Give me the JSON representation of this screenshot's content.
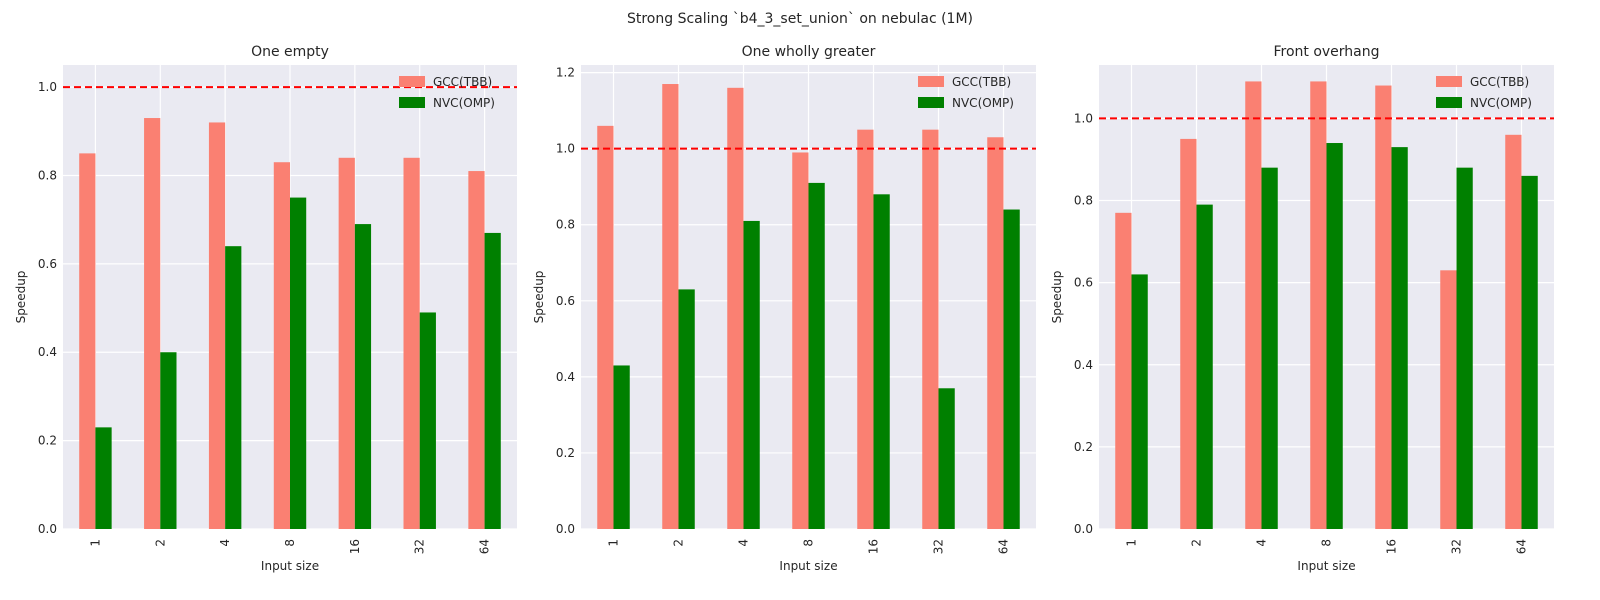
{
  "figure": {
    "suptitle": "Strong Scaling `b4_3_set_union` on nebulac (1M)"
  },
  "style": {
    "plot_bg": "#eaeaf2",
    "grid_color": "#ffffff",
    "reference_line_color": "#ff0000"
  },
  "chart_data": [
    {
      "type": "bar",
      "title": "One empty",
      "xlabel": "Input size",
      "ylabel": "Speedup",
      "categories": [
        "1",
        "2",
        "4",
        "8",
        "16",
        "32",
        "64"
      ],
      "ylim": [
        0,
        1.05
      ],
      "yticks": [
        "0.0",
        "0.2",
        "0.4",
        "0.6",
        "0.8",
        "1.0"
      ],
      "reference_line": 1.0,
      "legend_position": "top-right",
      "series": [
        {
          "name": "GCC(TBB)",
          "color": "#fa8072",
          "values": [
            0.85,
            0.93,
            0.92,
            0.83,
            0.84,
            0.84,
            0.81
          ]
        },
        {
          "name": "NVC(OMP)",
          "color": "#008000",
          "values": [
            0.23,
            0.4,
            0.64,
            0.75,
            0.69,
            0.49,
            0.67
          ]
        }
      ]
    },
    {
      "type": "bar",
      "title": "One wholly greater",
      "xlabel": "Input size",
      "ylabel": "Speedup",
      "categories": [
        "1",
        "2",
        "4",
        "8",
        "16",
        "32",
        "64"
      ],
      "ylim": [
        0,
        1.22
      ],
      "yticks": [
        "0.0",
        "0.2",
        "0.4",
        "0.6",
        "0.8",
        "1.0",
        "1.2"
      ],
      "reference_line": 1.0,
      "legend_position": "top-right",
      "series": [
        {
          "name": "GCC(TBB)",
          "color": "#fa8072",
          "values": [
            1.06,
            1.17,
            1.16,
            0.99,
            1.05,
            1.05,
            1.03
          ]
        },
        {
          "name": "NVC(OMP)",
          "color": "#008000",
          "values": [
            0.43,
            0.63,
            0.81,
            0.91,
            0.88,
            0.37,
            0.84
          ]
        }
      ]
    },
    {
      "type": "bar",
      "title": "Front overhang",
      "xlabel": "Input size",
      "ylabel": "Speedup",
      "categories": [
        "1",
        "2",
        "4",
        "8",
        "16",
        "32",
        "64"
      ],
      "ylim": [
        0,
        1.13
      ],
      "yticks": [
        "0.0",
        "0.2",
        "0.4",
        "0.6",
        "0.8",
        "1.0"
      ],
      "reference_line": 1.0,
      "legend_position": "top-right",
      "series": [
        {
          "name": "GCC(TBB)",
          "color": "#fa8072",
          "values": [
            0.77,
            0.95,
            1.09,
            1.09,
            1.08,
            0.63,
            0.96
          ]
        },
        {
          "name": "NVC(OMP)",
          "color": "#008000",
          "values": [
            0.62,
            0.79,
            0.88,
            0.94,
            0.93,
            0.88,
            0.86
          ]
        }
      ]
    }
  ]
}
